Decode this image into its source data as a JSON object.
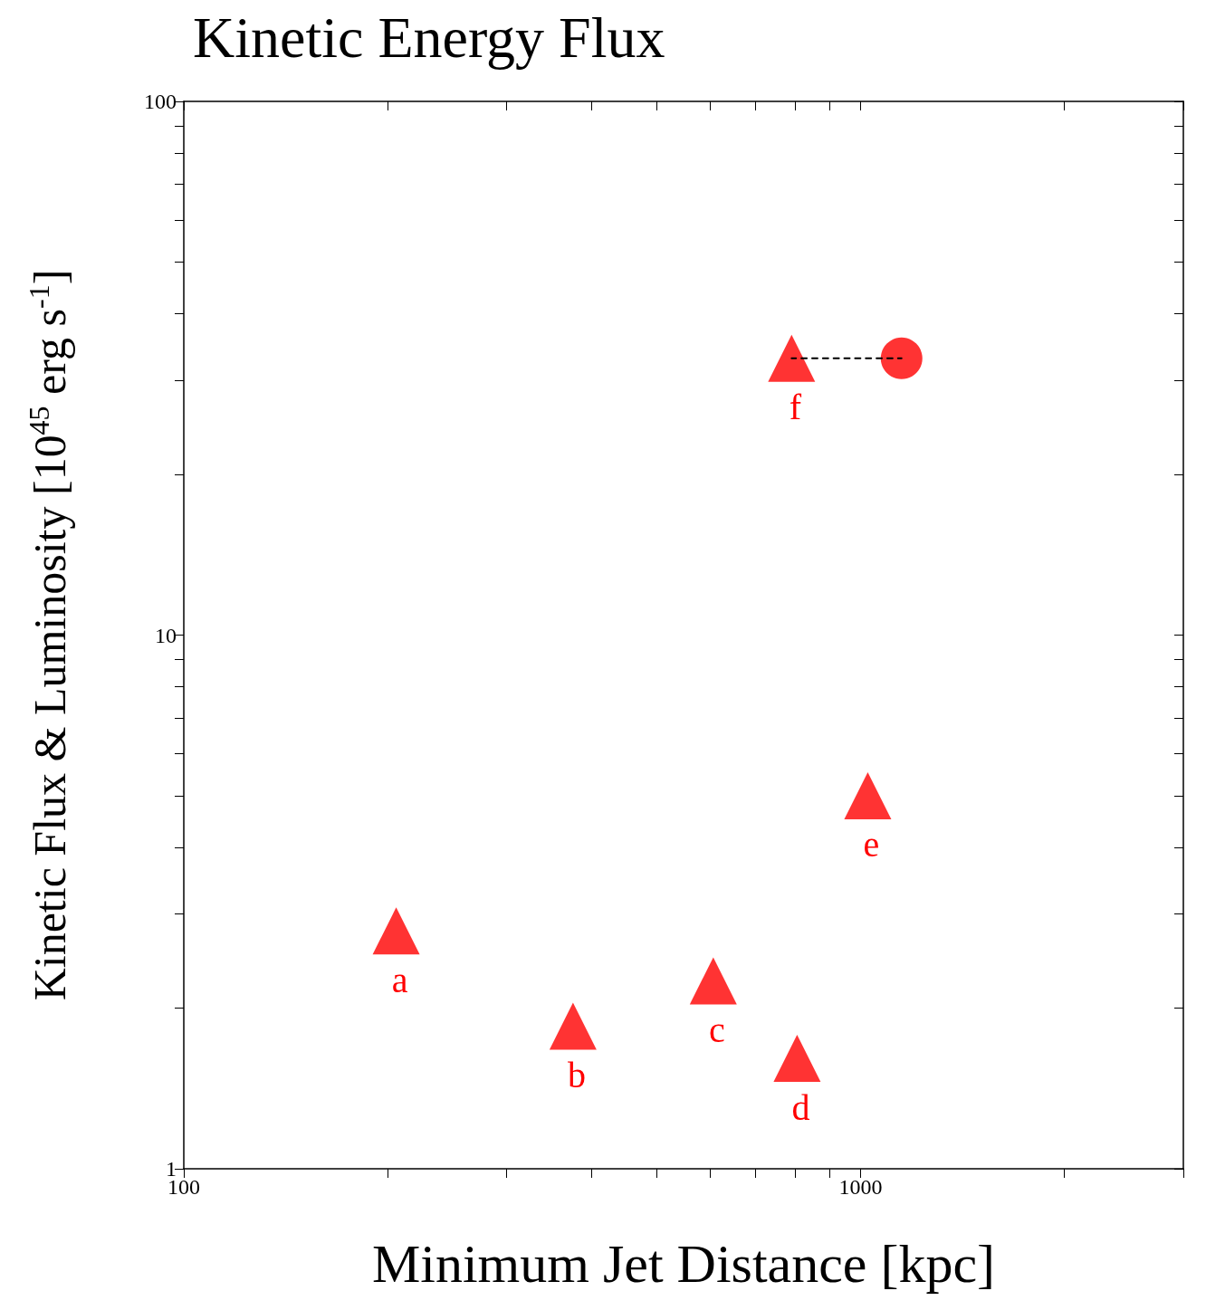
{
  "chart_data": {
    "type": "scatter",
    "title": "Kinetic Energy Flux",
    "xlabel": "Minimum Jet Distance [kpc]",
    "ylabel": "Kinetic Flux & Luminosity [10$^{45}$ erg s$^{-1}$]",
    "log": "xy",
    "grid": false,
    "xlim": [
      100,
      3000
    ],
    "ylim": [
      1,
      100
    ],
    "xticks": [
      100,
      {
        "value": 200,
        "label": null
      },
      {
        "value": 300,
        "label": null
      },
      {
        "value": 400,
        "label": null
      },
      {
        "value": 500,
        "label": null
      },
      {
        "value": 600,
        "label": null
      },
      {
        "value": 700,
        "label": null
      },
      {
        "value": 800,
        "label": null
      },
      {
        "value": 900,
        "label": null
      },
      1000,
      {
        "value": 2000,
        "label": null
      },
      {
        "value": 3000,
        "label": null
      }
    ],
    "yticks": [
      1,
      {
        "value": 2,
        "label": null
      },
      {
        "value": 3,
        "label": null
      },
      {
        "value": 4,
        "label": null
      },
      {
        "value": 5,
        "label": null
      },
      {
        "value": 6,
        "label": null
      },
      {
        "value": 7,
        "label": null
      },
      {
        "value": 8,
        "label": null
      },
      {
        "value": 9,
        "label": null
      },
      10,
      {
        "value": 20,
        "label": null
      },
      {
        "value": 30,
        "label": null
      },
      {
        "value": 40,
        "label": null
      },
      {
        "value": 50,
        "label": null
      },
      {
        "value": 60,
        "label": null
      },
      {
        "value": 70,
        "label": null
      },
      {
        "value": 80,
        "label": null
      },
      {
        "value": 90,
        "label": null
      },
      100
    ],
    "series": [
      {
        "type": "line",
        "x": [
          791,
          1150
        ],
        "values": [
          33,
          33
        ],
        "color": "#000000",
        "line_style": "dashed",
        "marker": "none"
      },
      {
        "x": [
          206,
          376,
          606,
          806,
          1025,
          791
        ],
        "values": [
          2.79,
          1.85,
          2.25,
          1.61,
          5.0,
          33
        ],
        "color": "#ff0000",
        "marker": "triangle"
      },
      {
        "x": [
          1150
        ],
        "values": [
          33
        ],
        "color": "#ff0000",
        "marker": "circle"
      }
    ],
    "annotations": [
      {
        "text": "a",
        "x": 206,
        "y": 2.79
      },
      {
        "text": "b",
        "x": 376,
        "y": 1.85
      },
      {
        "text": "c",
        "x": 606,
        "y": 2.25
      },
      {
        "text": "d",
        "x": 806,
        "y": 1.61
      },
      {
        "text": "e",
        "x": 1025,
        "y": 5.0
      },
      {
        "text": "f",
        "x": 791,
        "y": 33
      }
    ]
  }
}
